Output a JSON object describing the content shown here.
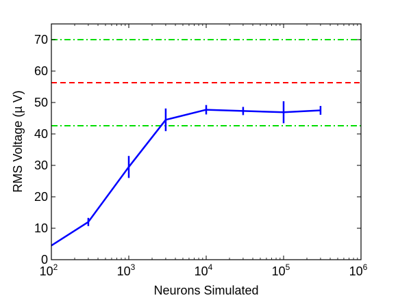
{
  "chart_data": {
    "type": "line",
    "title": "",
    "xlabel": "Neurons Simulated",
    "ylabel": "RMS Voltage (µ V)",
    "xscale": "log",
    "xlim": [
      100,
      1000000
    ],
    "ylim": [
      0,
      75
    ],
    "x_ticks": [
      {
        "base": "10",
        "exp": "2",
        "value": 100
      },
      {
        "base": "10",
        "exp": "3",
        "value": 1000
      },
      {
        "base": "10",
        "exp": "4",
        "value": 10000
      },
      {
        "base": "10",
        "exp": "5",
        "value": 100000
      },
      {
        "base": "10",
        "exp": "6",
        "value": 1000000
      }
    ],
    "y_ticks": [
      0,
      10,
      20,
      30,
      40,
      50,
      60,
      70
    ],
    "grid": false,
    "series": [
      {
        "color": "#0000ff",
        "points": [
          {
            "x": 100,
            "y": 4.5,
            "err": 0
          },
          {
            "x": 300,
            "y": 12.0,
            "err": 1.3
          },
          {
            "x": 1000,
            "y": 29.5,
            "err": 3.5
          },
          {
            "x": 3000,
            "y": 44.5,
            "err": 3.6
          },
          {
            "x": 10000,
            "y": 47.7,
            "err": 1.5
          },
          {
            "x": 30000,
            "y": 47.3,
            "err": 1.3
          },
          {
            "x": 100000,
            "y": 46.9,
            "err": 3.5
          },
          {
            "x": 300000,
            "y": 47.5,
            "err": 1.4
          }
        ]
      }
    ],
    "reference_lines": [
      {
        "y": 70,
        "style": "dash-dot",
        "color": "#00dd00"
      },
      {
        "y": 56.3,
        "style": "dashed",
        "color": "#ff0000"
      },
      {
        "y": 42.6,
        "style": "dash-dot",
        "color": "#00dd00"
      }
    ]
  }
}
